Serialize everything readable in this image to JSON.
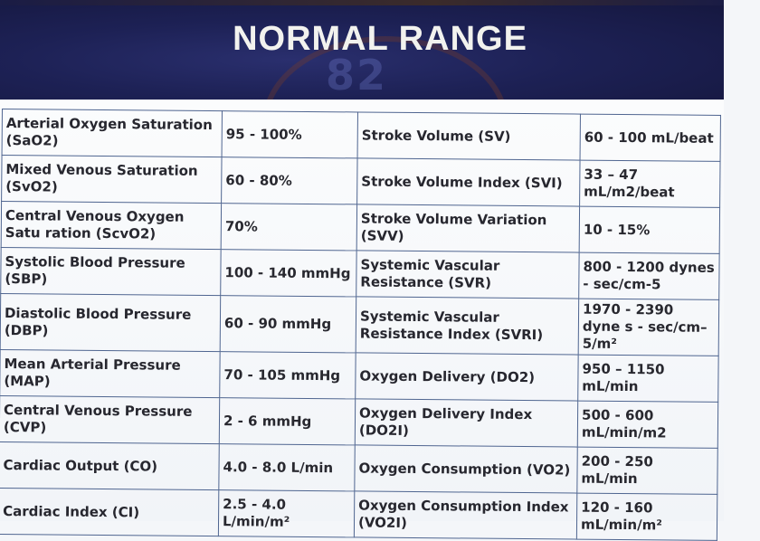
{
  "title": "NORMAL RANGE",
  "background_number": "82",
  "colors": {
    "header_bg": "#1d2155",
    "title_text": "#f2f2ee",
    "grid_line": "#4f6590",
    "cell_text": "#27272f"
  },
  "rows": [
    {
      "left_label": "Arterial Oxygen Saturation (SaO2)",
      "left_value": "95 - 100%",
      "right_label": "Stroke Volume (SV)",
      "right_value": "60 - 100 mL/beat"
    },
    {
      "left_label": "Mixed Venous Saturation (SvO2)",
      "left_value": "60 - 80%",
      "right_label": "Stroke Volume Index (SVI)",
      "right_value": "33 – 47 mL/m2/beat"
    },
    {
      "left_label": "Central Venous Oxygen Satu ration (ScvO2)",
      "left_value": "70%",
      "right_label": "Stroke Volume Variation (SVV)",
      "right_value": "10 - 15%"
    },
    {
      "left_label": "Systolic Blood Pressure (SBP)",
      "left_value": "100 - 140 mmHg",
      "right_label": "Systemic Vascular Resistance (SVR)",
      "right_value": "800 - 1200 dynes - sec/cm-5"
    },
    {
      "left_label": "Diastolic Blood Pressure (DBP)",
      "left_value": "60 - 90 mmHg",
      "right_label": "Systemic Vascular Resistance Index (SVRI)",
      "right_value": "1970 - 2390 dyne s - sec/cm–5/m²"
    },
    {
      "left_label": "Mean Arterial Pressure (MAP)",
      "left_value": "70 - 105 mmHg",
      "right_label": "Oxygen Delivery (DO2)",
      "right_value": "950 – 1150 mL/min"
    },
    {
      "left_label": "Central Venous Pressure (CVP)",
      "left_value": "2 - 6 mmHg",
      "right_label": "Oxygen Delivery Index (DO2I)",
      "right_value": "500 - 600 mL/min/m2"
    },
    {
      "left_label": "Cardiac Output (CO)",
      "left_value": "4.0 - 8.0 L/min",
      "right_label": "Oxygen Consumption (VO2)",
      "right_value": "200 - 250 mL/min"
    },
    {
      "left_label": "Cardiac Index (CI)",
      "left_value": "2.5 - 4.0 L/min/m²",
      "right_label": "Oxygen Consumption Index (VO2I)",
      "right_value": "120 - 160 mL/min/m²"
    }
  ]
}
